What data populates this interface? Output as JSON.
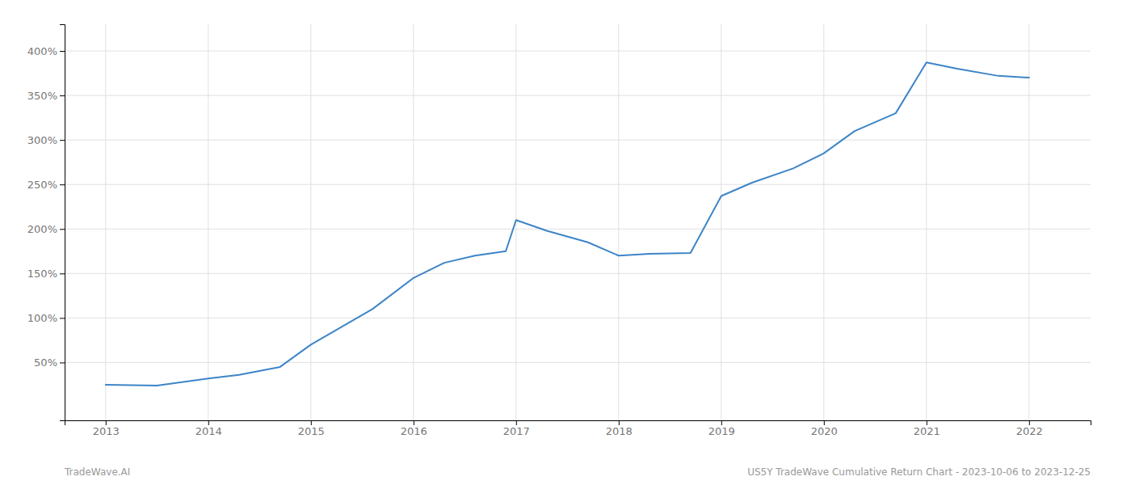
{
  "chart_data": {
    "type": "line",
    "x": [
      2013.0,
      2013.5,
      2014.0,
      2014.3,
      2014.7,
      2015.0,
      2015.3,
      2015.6,
      2016.0,
      2016.3,
      2016.6,
      2016.9,
      2017.0,
      2017.3,
      2017.7,
      2018.0,
      2018.3,
      2018.7,
      2019.0,
      2019.3,
      2019.7,
      2020.0,
      2020.3,
      2020.7,
      2021.0,
      2021.3,
      2021.7,
      2022.0
    ],
    "values": [
      25,
      24,
      32,
      36,
      45,
      70,
      90,
      110,
      145,
      162,
      170,
      175,
      210,
      198,
      185,
      170,
      172,
      173,
      237,
      252,
      268,
      285,
      310,
      330,
      387,
      380,
      372,
      370
    ],
    "color": "#3d85c8",
    "xlim": [
      2012.6,
      2022.6
    ],
    "ylim": [
      -15,
      430
    ],
    "xticks": [
      2013,
      2014,
      2015,
      2016,
      2017,
      2018,
      2019,
      2020,
      2021,
      2022
    ],
    "yticks": [
      {
        "value": 50,
        "label": "50%"
      },
      {
        "value": 100,
        "label": "100%"
      },
      {
        "value": 150,
        "label": "150%"
      },
      {
        "value": 200,
        "label": "200%"
      },
      {
        "value": 250,
        "label": "250%"
      },
      {
        "value": 300,
        "label": "300%"
      },
      {
        "value": 350,
        "label": "350%"
      },
      {
        "value": 400,
        "label": "400%"
      }
    ],
    "grid": true,
    "annotations": [
      "TradeWave.AI",
      "US5Y TradeWave Cumulative Return Chart - 2023-10-06 to 2023-12-25"
    ]
  }
}
